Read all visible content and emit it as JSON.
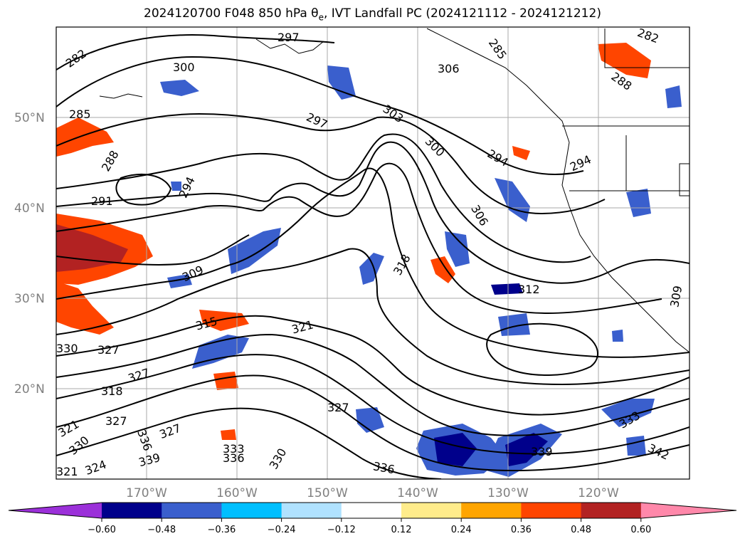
{
  "title": {
    "prefix": "2024120700 F048 850 hPa θ",
    "sub": "e",
    "suffix": ", IVT Landfall PC (2024121112 - 2024121212)"
  },
  "map": {
    "lat_labels": [
      "50°N",
      "40°N",
      "30°N",
      "20°N"
    ],
    "lon_labels": [
      "170°W",
      "160°W",
      "150°W",
      "140°W",
      "130°W",
      "120°W"
    ],
    "contour_labels": [
      "282",
      "300",
      "297",
      "285",
      "282",
      "285",
      "288",
      "297",
      "303",
      "300",
      "294",
      "294",
      "288",
      "294",
      "291",
      "306",
      "309",
      "318",
      "312",
      "309",
      "315",
      "321",
      "330",
      "327",
      "327",
      "318",
      "327",
      "321",
      "330",
      "327",
      "333",
      "336",
      "339",
      "336",
      "330",
      "339",
      "342",
      "321",
      "324",
      "336",
      "327",
      "333",
      "306"
    ]
  },
  "colorbar": {
    "ticks": [
      "−0.60",
      "−0.48",
      "−0.36",
      "−0.24",
      "−0.12",
      "0.12",
      "0.24",
      "0.36",
      "0.48",
      "0.60"
    ],
    "colors": [
      "#9b30d9",
      "#00008b",
      "#3a5fcd",
      "#00bfff",
      "#b0e2ff",
      "#ffffff",
      "#ffec8b",
      "#ffa500",
      "#ff4500",
      "#b22222",
      "#ff88aa"
    ]
  },
  "colors": {
    "grid": "#aaaaaa",
    "coast": "#000000",
    "contour": "#000000"
  }
}
